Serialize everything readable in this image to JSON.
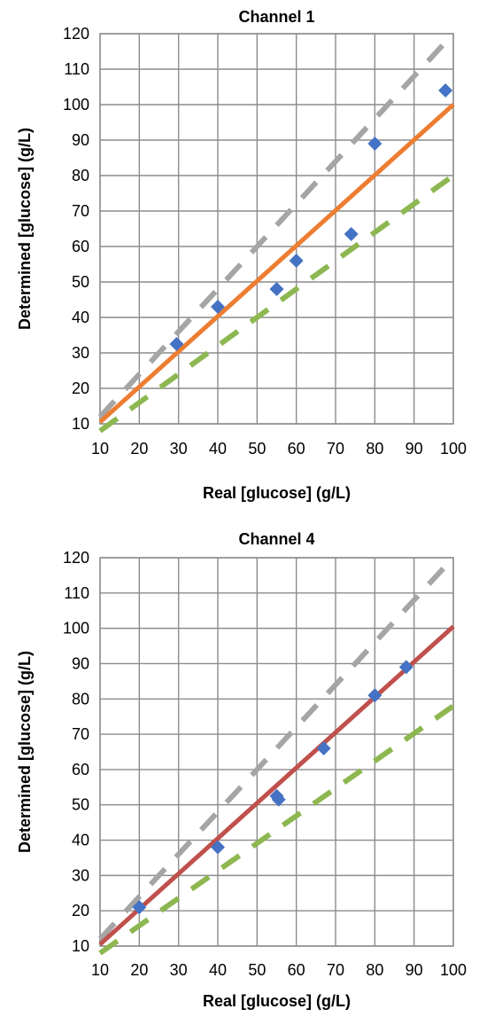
{
  "chart_data": [
    {
      "type": "scatter",
      "title": "Channel 1",
      "xlabel": "Real [glucose] (g/L)",
      "ylabel": "Determined [glucose] (g/L)",
      "xlim": [
        10,
        100
      ],
      "ylim": [
        10,
        120
      ],
      "xticks": [
        10,
        20,
        30,
        40,
        50,
        60,
        70,
        80,
        90,
        100
      ],
      "yticks": [
        10,
        20,
        30,
        40,
        50,
        60,
        70,
        80,
        90,
        100,
        110,
        120
      ],
      "grid": true,
      "series": [
        {
          "kind": "points",
          "color": "#4472C4",
          "points": [
            [
              29.5,
              32.5
            ],
            [
              40,
              43
            ],
            [
              55,
              48
            ],
            [
              60,
              56
            ],
            [
              74,
              63.5
            ],
            [
              80,
              89
            ],
            [
              98,
              104
            ]
          ]
        },
        {
          "kind": "line",
          "color": "#ED7D31",
          "dash": false,
          "points": [
            [
              10,
              10.5
            ],
            [
              100,
              100
            ]
          ]
        },
        {
          "kind": "line",
          "color": "#A5A5A5",
          "dash": true,
          "points": [
            [
              10,
              12
            ],
            [
              100,
              120
            ]
          ]
        },
        {
          "kind": "line",
          "color": "#8DB750",
          "dash": true,
          "points": [
            [
              10,
              8
            ],
            [
              100,
              80
            ]
          ]
        }
      ]
    },
    {
      "type": "scatter",
      "title": "Channel 4",
      "xlabel": "Real [glucose] (g/L)",
      "ylabel": "Determined [glucose] (g/L)",
      "xlim": [
        10,
        100
      ],
      "ylim": [
        10,
        120
      ],
      "xticks": [
        10,
        20,
        30,
        40,
        50,
        60,
        70,
        80,
        90,
        100
      ],
      "yticks": [
        10,
        20,
        30,
        40,
        50,
        60,
        70,
        80,
        90,
        100,
        110,
        120
      ],
      "grid": true,
      "series": [
        {
          "kind": "points",
          "color": "#4472C4",
          "points": [
            [
              20,
              21
            ],
            [
              40,
              38
            ],
            [
              55,
              52.5
            ],
            [
              55.5,
              51.5
            ],
            [
              67,
              66
            ],
            [
              80,
              81
            ],
            [
              88,
              89
            ]
          ]
        },
        {
          "kind": "line",
          "color": "#C0504D",
          "dash": false,
          "points": [
            [
              10,
              10.5
            ],
            [
              100,
              100.5
            ]
          ]
        },
        {
          "kind": "line",
          "color": "#A5A5A5",
          "dash": true,
          "points": [
            [
              10,
              12
            ],
            [
              100,
              120
            ]
          ]
        },
        {
          "kind": "line",
          "color": "#8DB750",
          "dash": true,
          "points": [
            [
              10,
              8
            ],
            [
              100,
              78
            ]
          ]
        }
      ]
    }
  ]
}
